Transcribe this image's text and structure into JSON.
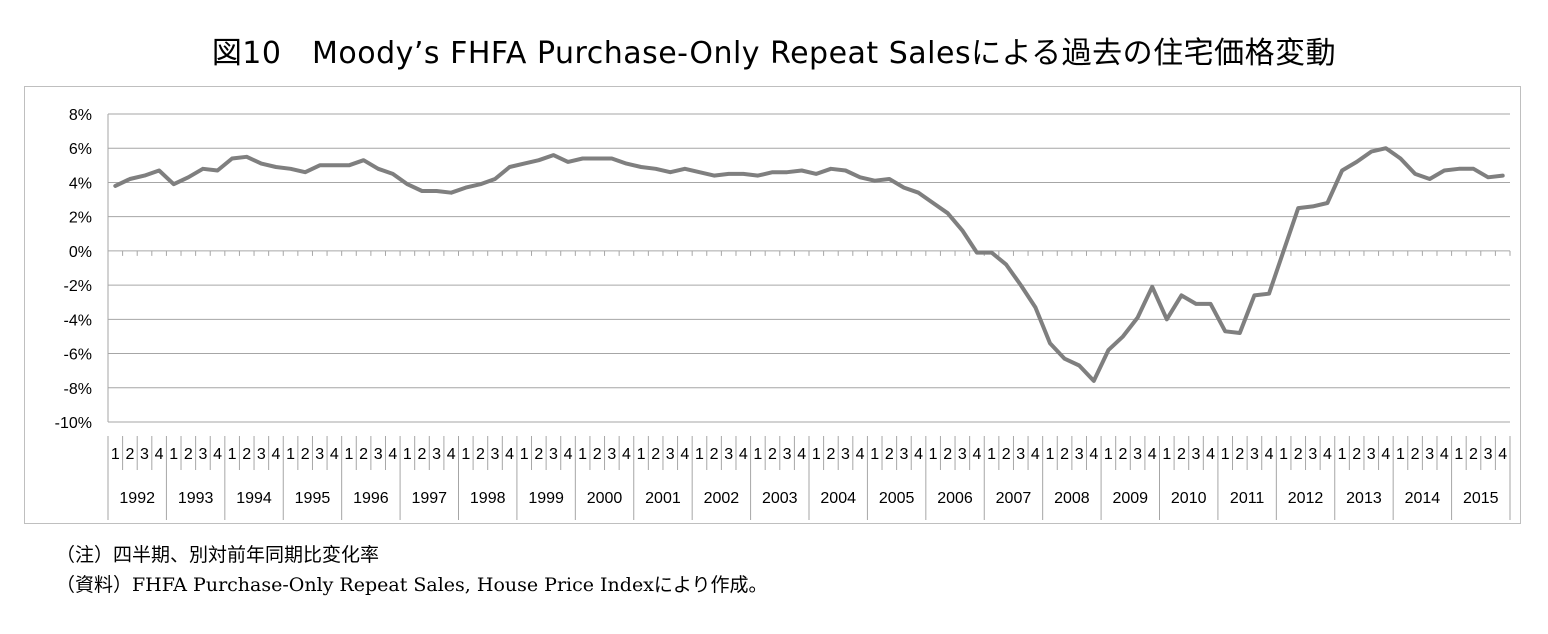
{
  "chart_data": {
    "type": "line",
    "title": "図10　Moody’s FHFA Purchase-Only Repeat Salesによる過去の住宅価格変動",
    "ylim": [
      -10,
      8
    ],
    "yticks": [
      "8%",
      "6%",
      "4%",
      "2%",
      "0%",
      "-2%",
      "-4%",
      "-6%",
      "-8%",
      "-10%"
    ],
    "ytick_values": [
      8,
      6,
      4,
      2,
      0,
      -2,
      -4,
      -6,
      -8,
      -10
    ],
    "grid": "horizontal",
    "legend": "none",
    "line_color": "#7f7f7f",
    "quarters": [
      "1",
      "2",
      "3",
      "4"
    ],
    "years": [
      "1992",
      "1993",
      "1994",
      "1995",
      "1996",
      "1997",
      "1998",
      "1999",
      "2000",
      "2001",
      "2002",
      "2003",
      "2004",
      "2005",
      "2006",
      "2007",
      "2008",
      "2009",
      "2010",
      "2011",
      "2012",
      "2013",
      "2014",
      "2015"
    ],
    "values": [
      3.8,
      4.2,
      4.4,
      4.7,
      3.9,
      4.3,
      4.8,
      4.7,
      5.4,
      5.5,
      5.1,
      4.9,
      4.8,
      4.6,
      5.0,
      5.0,
      5.0,
      5.3,
      4.8,
      4.5,
      3.9,
      3.5,
      3.5,
      3.4,
      3.7,
      3.9,
      4.2,
      4.9,
      5.1,
      5.3,
      5.6,
      5.2,
      5.4,
      5.4,
      5.4,
      5.1,
      4.9,
      4.8,
      4.6,
      4.8,
      4.6,
      4.4,
      4.5,
      4.5,
      4.4,
      4.6,
      4.6,
      4.7,
      4.5,
      4.8,
      4.7,
      4.3,
      4.1,
      4.2,
      3.7,
      3.4,
      2.8,
      2.2,
      1.2,
      -0.1,
      -0.1,
      -0.8,
      -2.0,
      -3.3,
      -5.4,
      -6.3,
      -6.7,
      -7.6,
      -5.8,
      -5.0,
      -3.9,
      -2.1,
      -4.0,
      -2.6,
      -3.1,
      -3.1,
      -4.7,
      -4.8,
      -2.6,
      -2.5,
      0.0,
      2.5,
      2.6,
      2.8,
      4.7,
      5.2,
      5.8,
      6.0,
      5.4,
      4.5,
      4.2,
      4.7,
      4.8,
      4.8,
      4.3,
      4.4
    ]
  },
  "notes": {
    "note1": "（注）四半期、別対前年同期比変化率",
    "note2": "（資料）FHFA Purchase-Only Repeat Sales, House Price Indexにより作成。"
  }
}
